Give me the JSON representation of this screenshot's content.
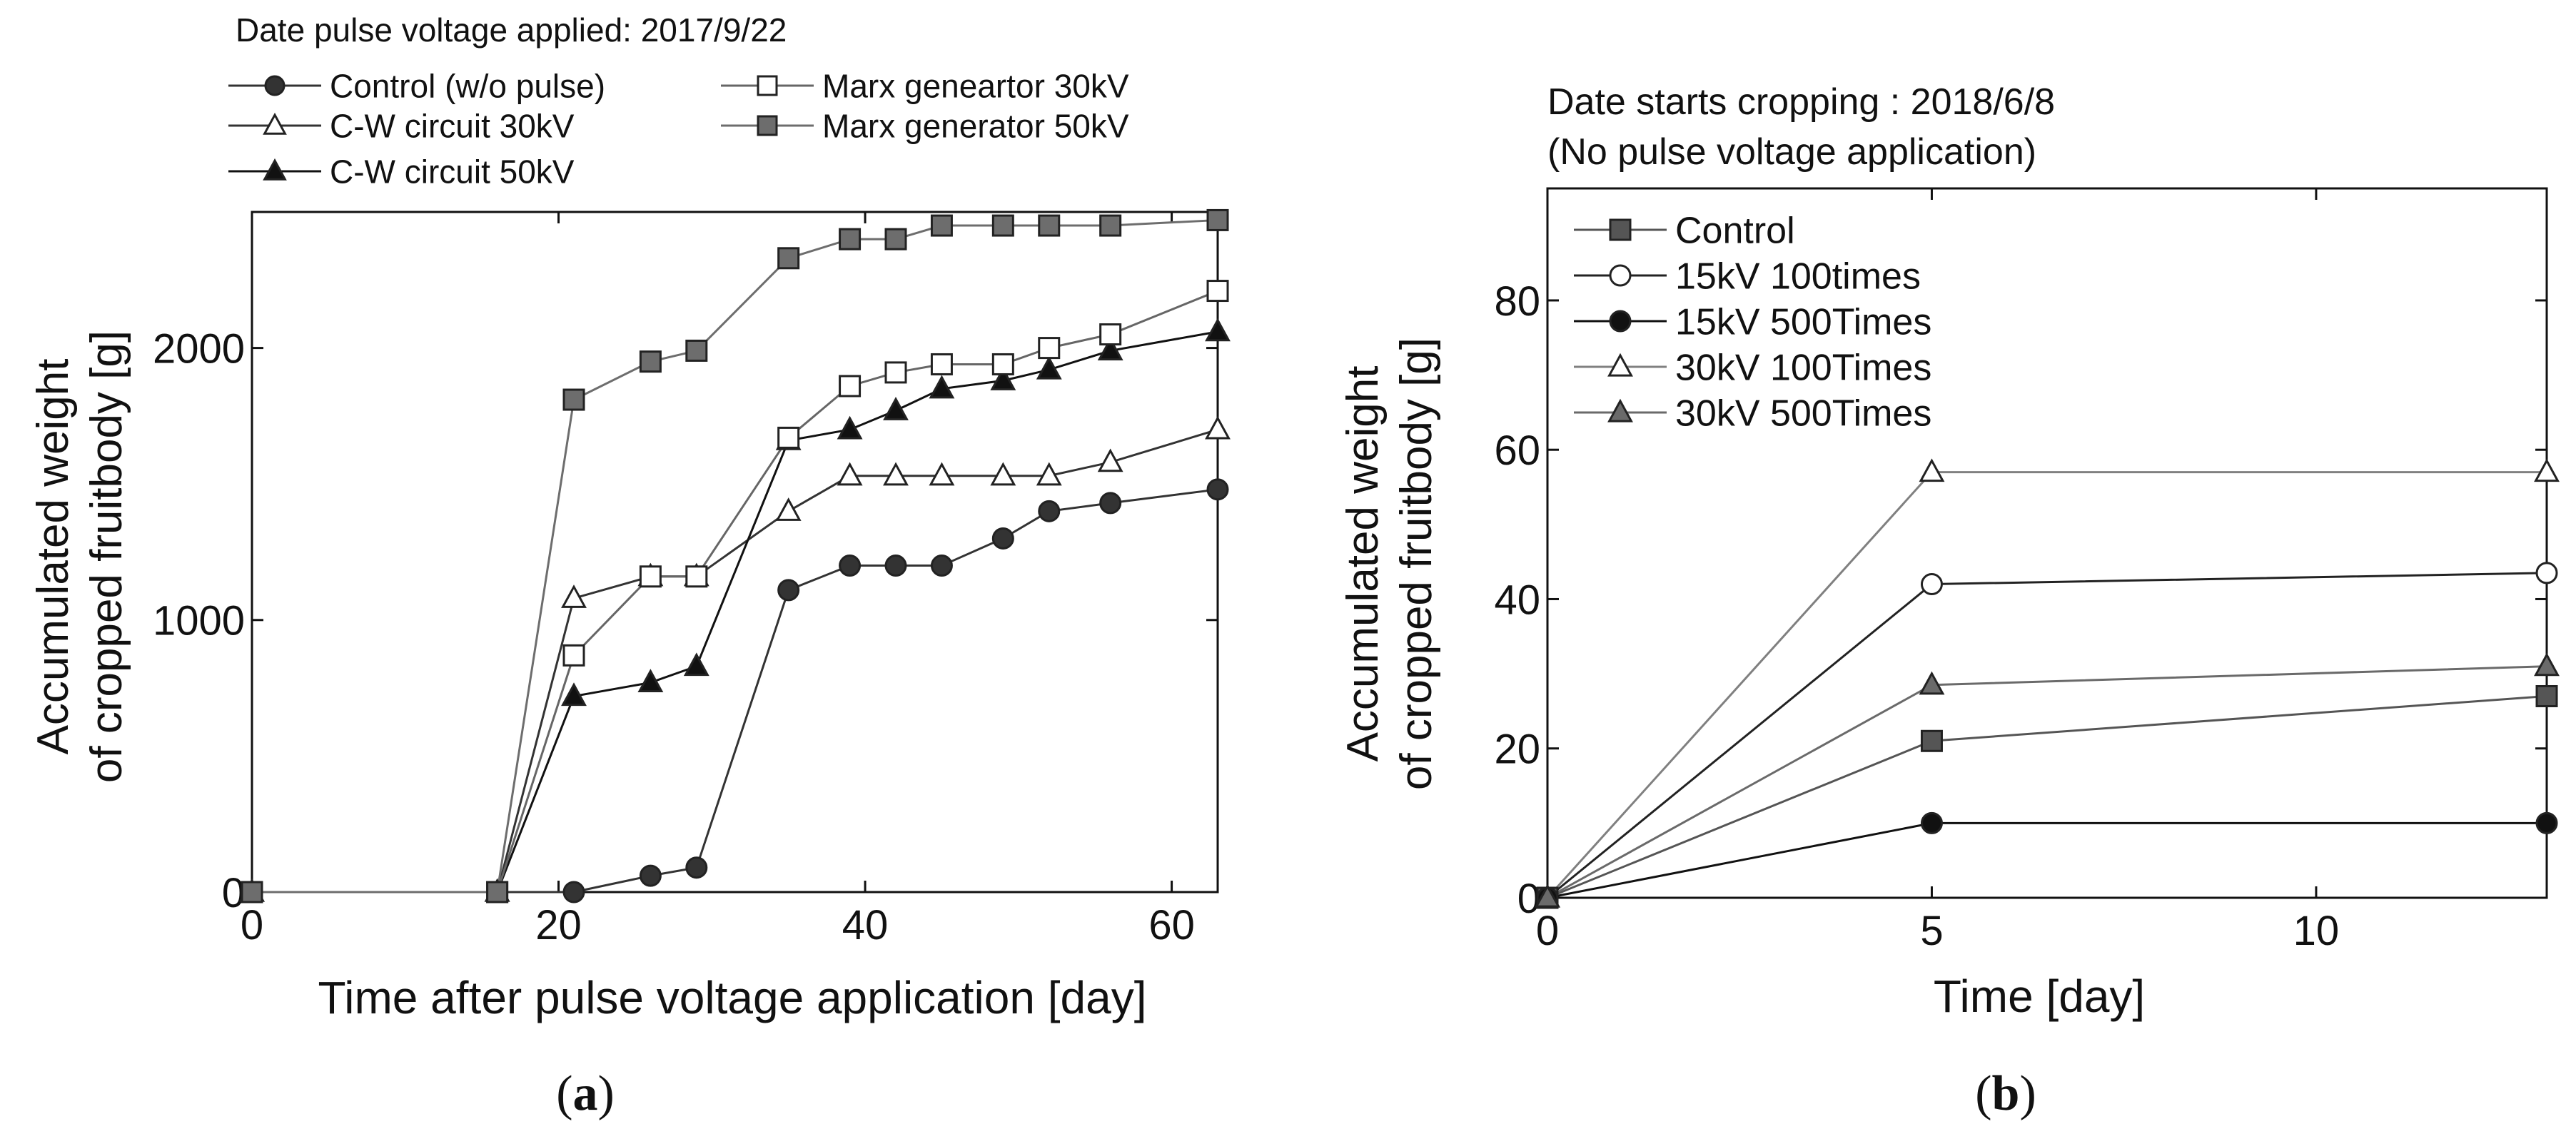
{
  "chart_data": [
    {
      "type": "line",
      "panel_label": "a",
      "title": "Date pulse voltage applied: 2017/9/22",
      "xlabel": "Time after pulse voltage application [day]",
      "ylabel": [
        "Accumulated weight",
        "of cropped fruitbody [g]"
      ],
      "xlim": [
        0,
        63
      ],
      "ylim": [
        0,
        2500
      ],
      "xticks": [
        0,
        20,
        40,
        60
      ],
      "yticks": [
        0,
        1000,
        2000
      ],
      "grid": false,
      "legend_position": "top",
      "series": [
        {
          "name": "Control (w/o pulse)",
          "marker": "circle",
          "fill": "filled",
          "color": "#333333",
          "x": [
            0,
            16,
            21,
            26,
            29,
            35,
            39,
            42,
            45,
            49,
            52,
            56,
            63
          ],
          "y": [
            0,
            0,
            0,
            60,
            90,
            1110,
            1200,
            1200,
            1200,
            1300,
            1400,
            1430,
            1480
          ]
        },
        {
          "name": "C-W circuit 30kV",
          "marker": "triangle",
          "fill": "open",
          "color": "#333333",
          "x": [
            0,
            16,
            21,
            26,
            29,
            35,
            39,
            42,
            45,
            49,
            52,
            56,
            63
          ],
          "y": [
            0,
            0,
            1080,
            1160,
            1160,
            1400,
            1530,
            1530,
            1530,
            1530,
            1530,
            1580,
            1700
          ]
        },
        {
          "name": "C-W circuit 50kV",
          "marker": "triangle",
          "fill": "filled",
          "color": "#111111",
          "x": [
            0,
            16,
            21,
            26,
            29,
            35,
            39,
            42,
            45,
            49,
            52,
            56,
            63
          ],
          "y": [
            0,
            0,
            720,
            770,
            830,
            1660,
            1700,
            1770,
            1850,
            1880,
            1920,
            1990,
            2060
          ]
        },
        {
          "name": "Marx geneartor 30kV",
          "marker": "square",
          "fill": "open",
          "color": "#666666",
          "x": [
            0,
            16,
            21,
            26,
            29,
            35,
            39,
            42,
            45,
            49,
            52,
            56,
            63
          ],
          "y": [
            0,
            0,
            870,
            1160,
            1160,
            1670,
            1860,
            1910,
            1940,
            1940,
            2000,
            2050,
            2210
          ]
        },
        {
          "name": "Marx generator 50kV",
          "marker": "square",
          "fill": "filled",
          "color": "#6d6d6d",
          "x": [
            0,
            16,
            21,
            26,
            29,
            35,
            39,
            42,
            45,
            49,
            52,
            56,
            63
          ],
          "y": [
            0,
            0,
            1810,
            1950,
            1990,
            2330,
            2400,
            2400,
            2450,
            2450,
            2450,
            2450,
            2470
          ]
        }
      ]
    },
    {
      "type": "line",
      "panel_label": "b",
      "title": [
        "Date starts cropping : 2018/6/8",
        "(No pulse voltage application)"
      ],
      "xlabel": "Time [day]",
      "ylabel": [
        "Accumulated weight",
        "of cropped fruitbody [g]"
      ],
      "xlim": [
        0,
        13
      ],
      "ylim": [
        0,
        95
      ],
      "xticks": [
        0,
        5,
        10
      ],
      "yticks": [
        0,
        20,
        40,
        60,
        80
      ],
      "grid": false,
      "legend_position": "top-left",
      "series": [
        {
          "name": "Control",
          "marker": "square",
          "fill": "filled",
          "color": "#555555",
          "x": [
            0,
            5,
            13
          ],
          "y": [
            0,
            21,
            27
          ]
        },
        {
          "name": "15kV 100times",
          "marker": "circle",
          "fill": "open",
          "color": "#222222",
          "x": [
            0,
            5,
            13
          ],
          "y": [
            0,
            42,
            43.5
          ]
        },
        {
          "name": "15kV 500Times",
          "marker": "circle",
          "fill": "filled",
          "color": "#111111",
          "x": [
            0,
            5,
            13
          ],
          "y": [
            0,
            10,
            10
          ]
        },
        {
          "name": "30kV 100Times",
          "marker": "triangle",
          "fill": "open",
          "color": "#808080",
          "x": [
            0,
            5,
            13
          ],
          "y": [
            0,
            57,
            57
          ]
        },
        {
          "name": "30kV 500Times",
          "marker": "triangle",
          "fill": "filled",
          "color": "#6a6a6a",
          "x": [
            0,
            5,
            13
          ],
          "y": [
            0,
            28.5,
            31
          ]
        }
      ]
    }
  ]
}
